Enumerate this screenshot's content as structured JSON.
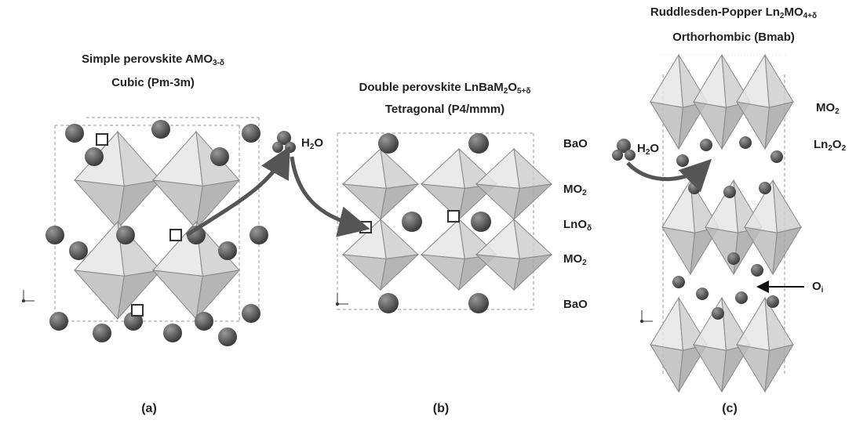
{
  "panels": [
    {
      "title": [
        "Simple perovskite AMO",
        "3-δ"
      ],
      "subtitle": "Cubic (Pm-3m)",
      "label": "(a)"
    },
    {
      "title": [
        "Double perovskite LnBaM",
        "2",
        "O",
        "5+δ"
      ],
      "subtitle": "Tetragonal (P4/mmm)",
      "label": "(b)",
      "layers": [
        [
          "BaO"
        ],
        [
          "MO",
          "2"
        ],
        [
          "LnO",
          "δ"
        ],
        [
          "MO",
          "2"
        ],
        [
          "BaO"
        ]
      ]
    },
    {
      "title": [
        "Ruddlesden-Popper Ln",
        "2",
        "MO",
        "4+δ"
      ],
      "subtitle": "Orthorhombic (Bmab)",
      "label": "(c)",
      "layers": [
        [
          "MO",
          "2"
        ],
        [
          "Ln",
          "2",
          "O",
          "2"
        ]
      ],
      "interstitial": [
        "O",
        "i"
      ]
    }
  ],
  "water": [
    "H",
    "2",
    "O"
  ]
}
